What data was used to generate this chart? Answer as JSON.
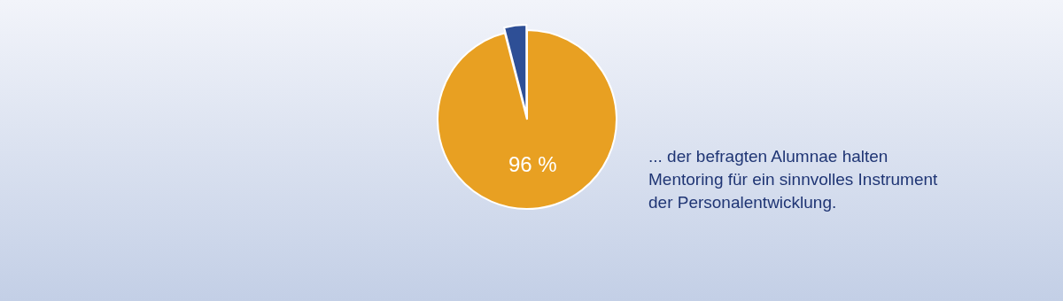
{
  "chart_data": {
    "type": "pie",
    "categories": [
      null,
      null
    ],
    "values": [
      96,
      4
    ],
    "colors": [
      "#e8a022",
      "#2e4f96"
    ],
    "value_labels": [
      "96 %",
      null
    ],
    "annotations": [
      "... der befragten Alumnae halten\nMentoring für ein sinnvolles Instrument\nder Personalentwicklung."
    ]
  }
}
